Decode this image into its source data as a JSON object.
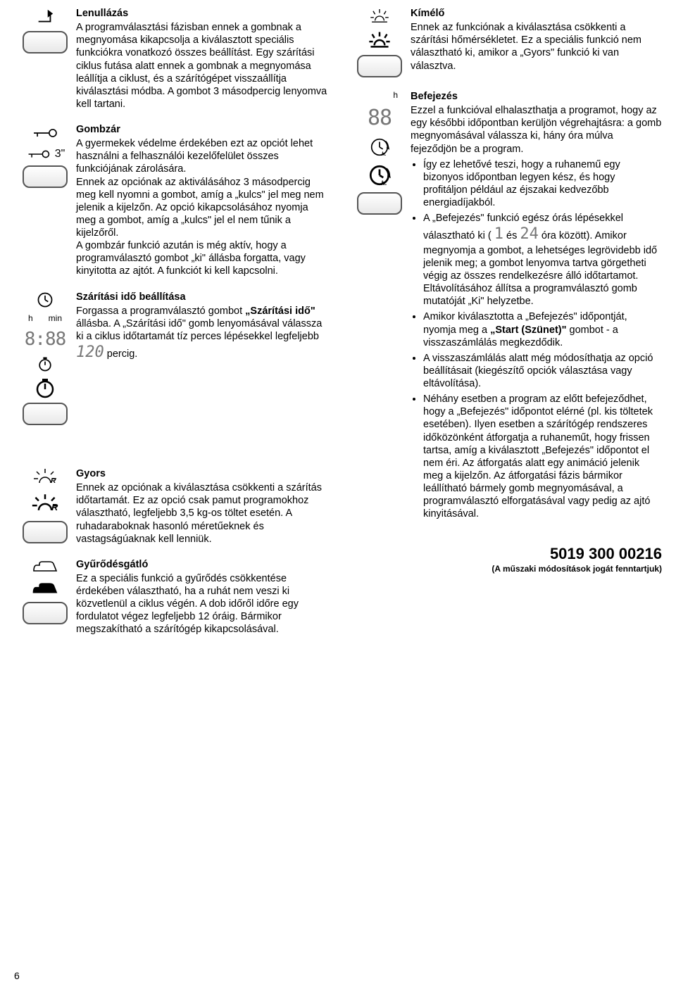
{
  "left_column": {
    "reset": {
      "heading": "Lenullázás",
      "body": "A programválasztási fázisban ennek a gombnak a megnyomása kikapcsolja a kiválasztott speciális funkciókra vonatkozó összes beállítást. Egy szárítási ciklus futása alatt ennek a gombnak a megnyomása leállítja a ciklust, és a szárítógépet visszaállítja kiválasztási módba. A gombot 3 másodpercig lenyomva kell tartani."
    },
    "lock": {
      "sec_label": "3\"",
      "heading": "Gombzár",
      "body": "A gyermekek védelme érdekében ezt az opciót lehet használni a felhasználói kezelőfelület összes funkciójának zárolására.\nEnnek az opciónak az aktiválásához 3 másodpercig meg kell nyomni a gombot, amíg a „kulcs\" jel meg nem jelenik a kijelzőn. Az opció kikapcsolásához nyomja meg a gombot, amíg a „kulcs\" jel el nem tűnik a kijelzőről.\nA gombzár funkció azután is még aktív, hogy a programválasztó gombot „ki\" állásba forgatta, vagy kinyitotta az ajtót. A funkciót ki kell kapcsolni."
    },
    "drytime": {
      "h_label": "h",
      "min_label": "min",
      "time_digits": "8:88",
      "max_val": "120",
      "heading": "Szárítási idő beállítása",
      "body_pre": "Forgassa a programválasztó gombot „Szárítási idő\" állásba. A „Szárítási idő\" gomb lenyomásával válassza ki a ciklus időtartamát tíz perces lépésekkel legfeljebb ",
      "body_post": " percig."
    },
    "fast": {
      "heading": "Gyors",
      "body": "Ennek az opciónak a kiválasztása csökkenti a szárítás időtartamát. Ez az opció csak pamut programokhoz választható, legfeljebb 3,5 kg-os töltet esetén. A ruhadaraboknak hasonló méretűeknek és vastagságúaknak kell lenniük."
    },
    "anticrease": {
      "heading": "Gyűrődésgátló",
      "body": "Ez a speciális funkció a gyűrődés csökkentése érdekében választható, ha a ruhát nem veszi ki közvetlenül a ciklus végén. A dob időről időre egy fordulatot végez legfeljebb 12 óráig. Bármikor megszakítható a szárítógép kikapcsolásával."
    }
  },
  "right_column": {
    "gentle": {
      "heading": "Kímélő",
      "body": "Ennek az funkciónak a kiválasztása csökkenti a szárítási hőmérsékletet. Ez a speciális funkció nem választható ki, amikor a „Gyors\" funkció ki van választva."
    },
    "finish": {
      "h_label": "h",
      "digits": "88",
      "h_suffix": "h.",
      "heading": "Befejezés",
      "intro": "Ezzel a funkcióval elhalaszthatja a programot, hogy az egy későbbi időpontban kerüljön végrehajtásra: a gomb megnyomásával válassza ki, hány óra múlva fejeződjön be a program.",
      "b1": "Így ez lehetővé teszi, hogy a ruhanemű egy bizonyos időpontban legyen kész, és hogy profitáljon például az éjszakai kedvezőbb energiadíjakból.",
      "b2_pre": "A „Befejezés\" funkció egész órás lépésekkel választható ki ( ",
      "b2_low": "1",
      "b2_mid": " és ",
      "b2_high": "24",
      "b2_post": " óra között). Amikor megnyomja a gombot, a lehetséges legrövidebb idő jelenik meg; a gombot lenyomva tartva görgetheti végig az összes rendelkezésre álló időtartamot. Eltávolításához állítsa a programválasztó gomb mutatóját „Ki\" helyzetbe.",
      "b3": "Amikor kiválasztotta a „Befejezés\" időpontját, nyomja meg a „Start (Szünet)\" gombot - a visszaszámlálás megkezdődik.",
      "b4": "A visszaszámlálás alatt még módosíthatja az opció beállításait (kiegészítő opciók választása vagy eltávolítása).",
      "b5": "Néhány esetben a program az előtt befejeződhet, hogy a „Befejezés\" időpontot elérné (pl. kis töltetek esetében). Ilyen esetben a szárítógép rendszeres időközönként átforgatja a ruhaneműt, hogy frissen tartsa, amíg a kiválasztott „Befejezés\" időpontot el nem éri. Az átforgatás alatt egy animáció jelenik meg a kijelzőn. Az átforgatási fázis bármikor leállítható bármely gomb megnyomásával, a programválasztó elforgatásával vagy pedig az ajtó kinyitásával."
    }
  },
  "footer": {
    "code": "5019 300 00216",
    "note": "(A műszaki módosítások jogát fenntartjuk)"
  },
  "page_number": "6"
}
